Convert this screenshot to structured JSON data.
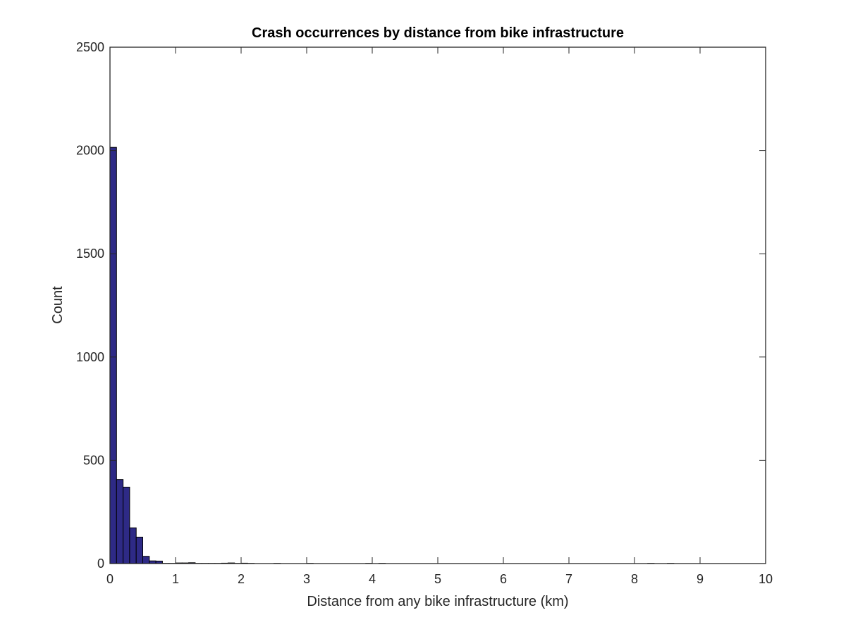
{
  "chart_data": {
    "type": "bar",
    "title": "Crash occurrences by distance from bike infrastructure",
    "xlabel": "Distance from any bike infrastructure (km)",
    "ylabel": "Count",
    "xlim": [
      0,
      10
    ],
    "ylim": [
      0,
      2500
    ],
    "xticks": [
      "0",
      "1",
      "2",
      "3",
      "4",
      "5",
      "6",
      "7",
      "8",
      "9",
      "10"
    ],
    "yticks": [
      "0",
      "500",
      "1000",
      "1500",
      "2000",
      "2500"
    ],
    "bin_width": 0.1,
    "bins": [
      {
        "x": 0.0,
        "count": 2015
      },
      {
        "x": 0.1,
        "count": 407
      },
      {
        "x": 0.2,
        "count": 370
      },
      {
        "x": 0.3,
        "count": 173
      },
      {
        "x": 0.4,
        "count": 128
      },
      {
        "x": 0.5,
        "count": 35
      },
      {
        "x": 0.6,
        "count": 13
      },
      {
        "x": 0.7,
        "count": 12
      },
      {
        "x": 0.8,
        "count": 1
      },
      {
        "x": 0.9,
        "count": 1
      },
      {
        "x": 1.0,
        "count": 3
      },
      {
        "x": 1.1,
        "count": 3
      },
      {
        "x": 1.2,
        "count": 4
      },
      {
        "x": 1.3,
        "count": 1
      },
      {
        "x": 1.4,
        "count": 1
      },
      {
        "x": 1.5,
        "count": 1
      },
      {
        "x": 1.6,
        "count": 1
      },
      {
        "x": 1.7,
        "count": 2
      },
      {
        "x": 1.8,
        "count": 3
      },
      {
        "x": 1.9,
        "count": 1
      },
      {
        "x": 2.0,
        "count": 2
      },
      {
        "x": 2.1,
        "count": 1
      },
      {
        "x": 2.5,
        "count": 1
      },
      {
        "x": 3.0,
        "count": 1
      },
      {
        "x": 3.9,
        "count": 1
      },
      {
        "x": 4.1,
        "count": 1
      },
      {
        "x": 8.2,
        "count": 1
      },
      {
        "x": 8.5,
        "count": 1
      }
    ],
    "colors": {
      "bar_fill": "#2e2a86",
      "bar_edge": "#000000",
      "axis": "#262626",
      "background": "#ffffff"
    },
    "grid": false,
    "box": true
  }
}
